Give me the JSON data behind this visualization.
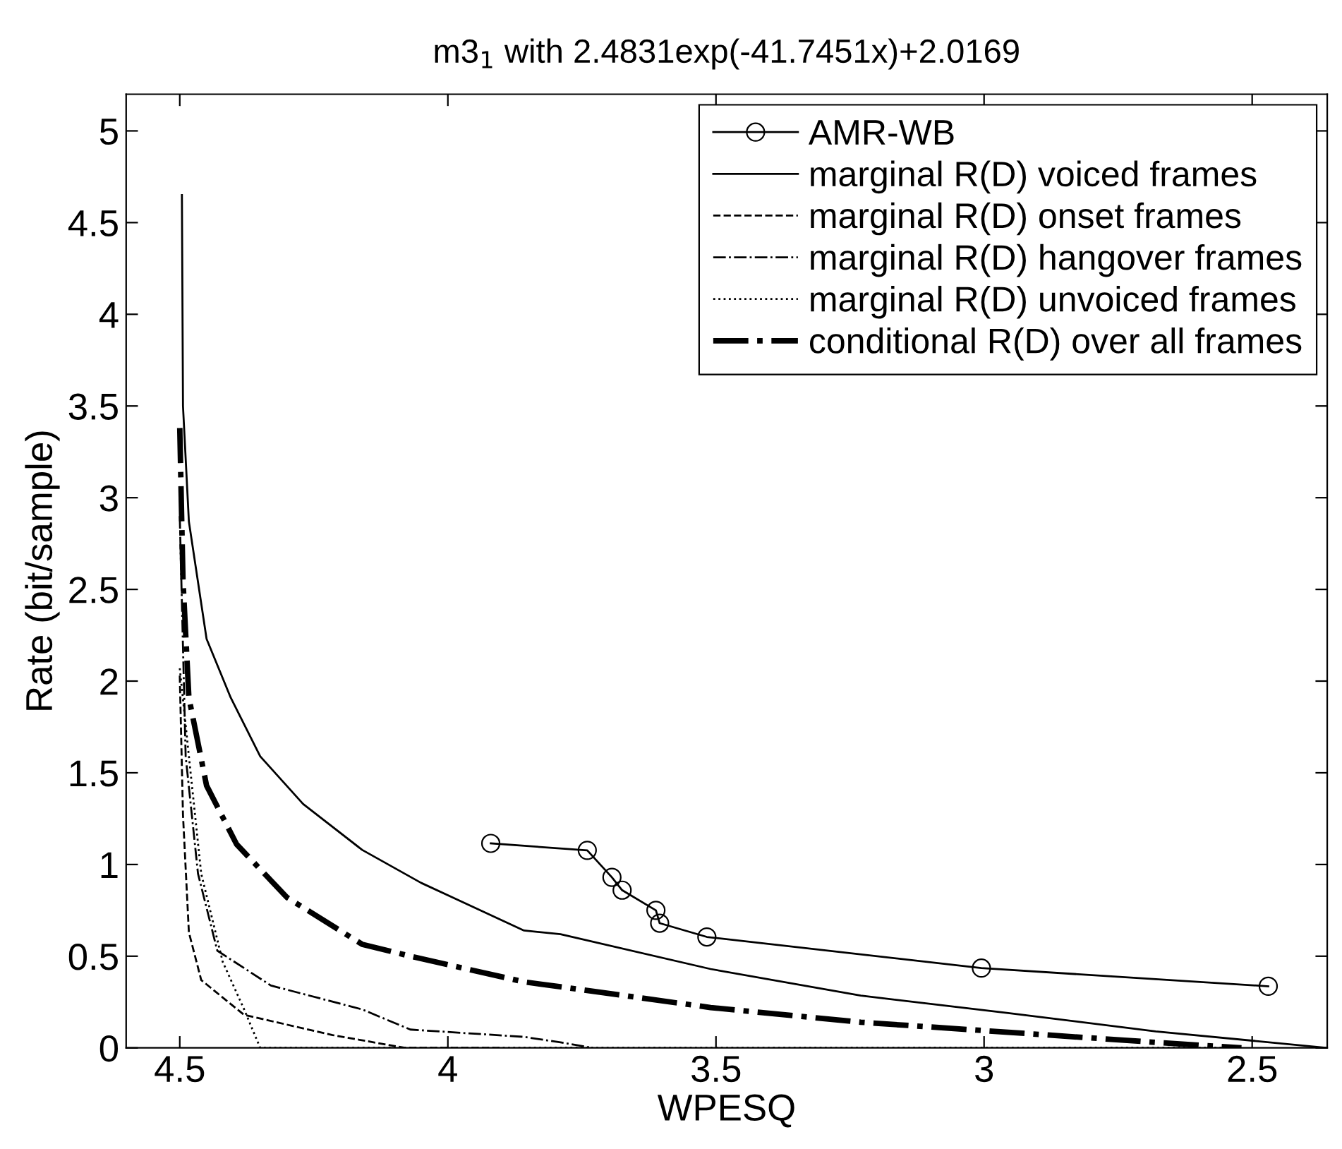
{
  "chart_data": {
    "type": "line",
    "title": "m3$_{1}$ with 2.4831exp(-41.7451x)+2.0169",
    "xlabel": "WPESQ",
    "ylabel": "Rate (bit/sample)",
    "xlim": [
      4.6,
      2.36
    ],
    "ylim": [
      0,
      5.2
    ],
    "xticks": [
      4.5,
      4,
      3.5,
      3,
      2.5
    ],
    "yticks": [
      0,
      0.5,
      1,
      1.5,
      2,
      2.5,
      3,
      3.5,
      4,
      4.5,
      5
    ],
    "grid": false,
    "legend": "top right",
    "series": [
      {
        "name": "AMR-WB",
        "color": "#000000",
        "marker": "circle",
        "line_style": "solid",
        "x": [
          3.92,
          3.74,
          3.694,
          3.675,
          3.612,
          3.605,
          3.517,
          3.005,
          2.47
        ],
        "values": [
          1.115,
          1.077,
          0.93,
          0.86,
          0.75,
          0.68,
          0.605,
          0.435,
          0.336
        ]
      },
      {
        "name": "marginal R(D) voiced frames",
        "color": "#000000",
        "marker": "none",
        "line_style": "solid",
        "x": [
          4.496,
          4.494,
          4.483,
          4.45,
          4.405,
          4.35,
          4.27,
          4.16,
          4.05,
          3.858,
          3.79,
          3.51,
          3.23,
          2.955,
          2.68,
          2.36
        ],
        "values": [
          4.65,
          3.5,
          2.87,
          2.23,
          1.91,
          1.59,
          1.33,
          1.08,
          0.9,
          0.64,
          0.62,
          0.43,
          0.285,
          0.19,
          0.09,
          0
        ]
      },
      {
        "name": "marginal R(D) onset frames",
        "color": "#000000",
        "marker": "none",
        "line_style": "dashed",
        "x": [
          4.5,
          4.494,
          4.483,
          4.46,
          4.38,
          4.215,
          4.08,
          3.9
        ],
        "values": [
          2.03,
          1.27,
          0.63,
          0.37,
          0.18,
          0.07,
          0,
          0
        ]
      },
      {
        "name": "marginal R(D) hangover frames",
        "color": "#000000",
        "marker": "none",
        "line_style": "dashdot",
        "x": [
          4.5,
          4.489,
          4.466,
          4.43,
          4.33,
          4.16,
          4.07,
          3.858,
          3.79,
          3.73
        ],
        "values": [
          2.9,
          1.59,
          0.95,
          0.53,
          0.34,
          0.21,
          0.1,
          0.06,
          0.03,
          0
        ]
      },
      {
        "name": "marginal R(D) unvoiced frames",
        "color": "#000000",
        "marker": "none",
        "line_style": "dotted",
        "x": [
          4.5,
          4.483,
          4.46,
          4.42,
          4.38,
          4.35,
          2.55
        ],
        "values": [
          2.07,
          1.59,
          0.95,
          0.47,
          0.21,
          0,
          0
        ]
      },
      {
        "name": "conditional R(D) over all frames",
        "color": "#000000",
        "marker": "none",
        "line_style": "dashdot",
        "x": [
          4.5,
          4.494,
          4.483,
          4.45,
          4.394,
          4.3,
          4.16,
          4.07,
          3.858,
          3.79,
          3.51,
          3.23,
          2.955,
          2.68,
          2.52
        ],
        "values": [
          3.38,
          2.55,
          1.91,
          1.43,
          1.11,
          0.82,
          0.565,
          0.5,
          0.36,
          0.333,
          0.22,
          0.14,
          0.085,
          0.03,
          0
        ]
      }
    ]
  }
}
